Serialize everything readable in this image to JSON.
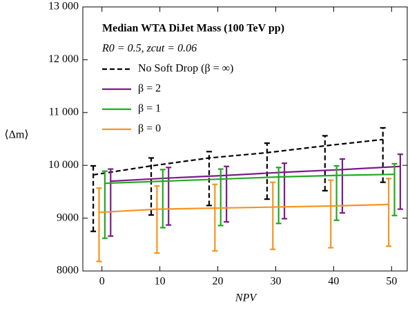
{
  "chart_data": {
    "type": "line",
    "title": "Median WTA DiJet Mass (100 TeV pp)",
    "subtitle": "R0 = 0.5, zcut = 0.06",
    "x_label": "NPV",
    "y_label": "⟨Δm⟩",
    "xlim": [
      -3.3,
      52.7
    ],
    "ylim": [
      8000,
      13000
    ],
    "xticks": [
      0,
      10,
      20,
      30,
      40,
      50
    ],
    "yticks": [
      8000,
      9000,
      {
        "value": 10000,
        "label": "10 000"
      },
      {
        "value": 11000,
        "label": "11 000"
      },
      {
        "value": 12000,
        "label": "12 000"
      },
      {
        "value": 13000,
        "label": "13 000"
      }
    ],
    "legend": "upper left",
    "series": [
      {
        "name": "No Soft Drop (β = ∞)",
        "color": "#000000",
        "linestyle": "dashed",
        "x": [
          -1.5,
          8.5,
          18.5,
          28.5,
          38.5,
          48.5
        ],
        "values": [
          9820,
          9990,
          10140,
          10240,
          10370,
          10490
        ],
        "low": [
          8750,
          9060,
          9240,
          9360,
          9520,
          9680
        ],
        "high": [
          9990,
          10140,
          10260,
          10420,
          10560,
          10710
        ]
      },
      {
        "name": "β = 2",
        "color": "#7b1a8a",
        "linestyle": "solid",
        "x": [
          1.5,
          11.5,
          21.5,
          31.5,
          41.5,
          51.5
        ],
        "values": [
          9700,
          9760,
          9810,
          9870,
          9920,
          9980
        ],
        "low": [
          8660,
          8870,
          8930,
          8990,
          9100,
          9170
        ],
        "high": [
          9930,
          9960,
          9980,
          10040,
          10120,
          10210
        ]
      },
      {
        "name": "β = 1",
        "color": "#22a822",
        "linestyle": "solid",
        "x": [
          0.5,
          10.5,
          20.5,
          30.5,
          40.5,
          50.5
        ],
        "values": [
          9660,
          9700,
          9740,
          9780,
          9810,
          9830
        ],
        "low": [
          8620,
          8820,
          8860,
          8900,
          8960,
          9050
        ],
        "high": [
          9890,
          9920,
          9930,
          9960,
          9990,
          10030
        ]
      },
      {
        "name": "β = 0",
        "color": "#f7941d",
        "linestyle": "solid",
        "x": [
          -0.5,
          9.5,
          19.5,
          29.5,
          39.5,
          49.5
        ],
        "values": [
          9110,
          9170,
          9190,
          9210,
          9230,
          9260
        ],
        "low": [
          8180,
          8340,
          8380,
          8410,
          8440,
          8470
        ],
        "high": [
          9570,
          9610,
          9640,
          9680,
          9720,
          9750
        ]
      }
    ]
  }
}
